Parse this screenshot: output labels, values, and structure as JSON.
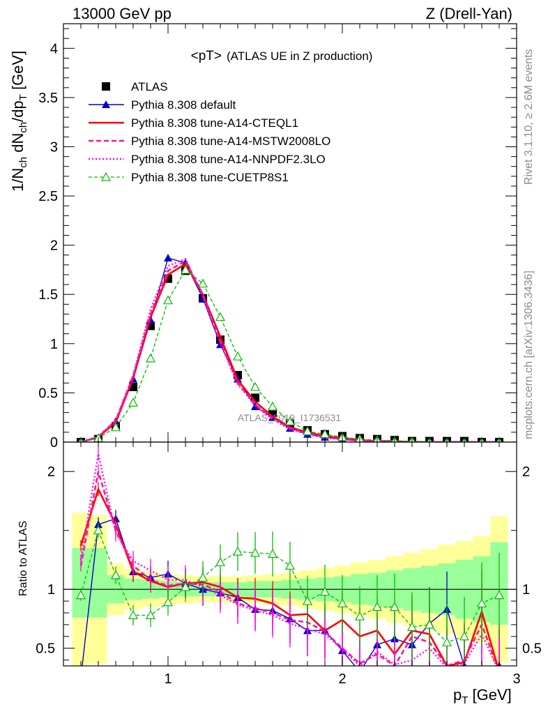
{
  "header": {
    "energy": "13000 GeV pp",
    "process": "Z (Drell-Yan)"
  },
  "side_text": {
    "rivet": "Rivet 3.1.10, ≥ 2.6M events",
    "source": "mcplots.cern.ch [arXiv:1306.3436]"
  },
  "plot_title_main": "<pT>",
  "plot_title_sub": "(ATLAS UE in Z production)",
  "watermark": "ATLAS_2019_I1736531",
  "colors": {
    "atlas": "#000000",
    "default": "#0000cc",
    "cteql1": "#ff0000",
    "mstw": "#ff1493",
    "nnpdf": "#ff00ff",
    "cuetp8s1": "#00bb00",
    "band_yellow": "#ffff99",
    "band_green": "#99ff99"
  },
  "chart_data": [
    {
      "type": "line",
      "panel": "main",
      "ylabel": "1/N_ch dN_ch/dp_T [GeV]",
      "xlim": [
        0.4,
        3.0
      ],
      "ylim": [
        0,
        4.25
      ],
      "yticks": [
        "0",
        "0.5",
        "1",
        "1.5",
        "2",
        "2.5",
        "3",
        "3.5",
        "4"
      ],
      "legend_position": "top-left",
      "x": [
        0.5,
        0.6,
        0.7,
        0.8,
        0.9,
        1.0,
        1.1,
        1.2,
        1.3,
        1.4,
        1.5,
        1.6,
        1.7,
        1.8,
        1.9,
        2.0,
        2.1,
        2.2,
        2.3,
        2.4,
        2.5,
        2.6,
        2.7,
        2.8,
        2.9
      ],
      "series": [
        {
          "name": "ATLAS",
          "key": "atlas",
          "values": [
            0.0,
            0.03,
            0.16,
            0.56,
            1.18,
            1.66,
            1.74,
            1.46,
            1.04,
            0.68,
            0.45,
            0.3,
            0.19,
            0.12,
            0.08,
            0.06,
            0.04,
            0.03,
            0.02,
            0.01,
            0.01,
            0.01,
            0.01,
            0.0,
            0.0
          ]
        },
        {
          "name": "Pythia 8.308 default",
          "key": "default",
          "values": [
            0.0,
            0.04,
            0.21,
            0.64,
            1.24,
            1.87,
            1.82,
            1.46,
            0.99,
            0.64,
            0.36,
            0.25,
            0.14,
            0.08,
            0.05,
            0.03,
            0.01,
            0.01,
            0.0,
            0.0,
            0.0,
            0.0,
            0.0,
            0.0,
            0.0
          ]
        },
        {
          "name": "Pythia 8.308 tune-A14-CTEQL1",
          "key": "cteql1",
          "values": [
            0.0,
            0.05,
            0.2,
            0.65,
            1.27,
            1.7,
            1.81,
            1.5,
            1.07,
            0.63,
            0.41,
            0.26,
            0.15,
            0.1,
            0.06,
            0.04,
            0.02,
            0.01,
            0.01,
            0.0,
            0.0,
            0.0,
            0.0,
            0.0,
            0.0
          ]
        },
        {
          "name": "Pythia 8.308 tune-A14-MSTW2008LO",
          "key": "mstw",
          "values": [
            0.0,
            0.05,
            0.22,
            0.67,
            1.3,
            1.74,
            1.84,
            1.5,
            1.02,
            0.6,
            0.38,
            0.24,
            0.14,
            0.09,
            0.05,
            0.03,
            0.01,
            0.01,
            0.0,
            0.0,
            0.0,
            0.0,
            0.0,
            0.0,
            0.0
          ]
        },
        {
          "name": "Pythia 8.308 tune-A14-NNPDF2.3LO",
          "key": "nnpdf",
          "values": [
            0.0,
            0.06,
            0.22,
            0.68,
            1.35,
            1.79,
            1.86,
            1.48,
            1.0,
            0.59,
            0.37,
            0.23,
            0.13,
            0.08,
            0.04,
            0.03,
            0.01,
            0.01,
            0.0,
            0.0,
            0.0,
            0.0,
            0.0,
            0.0,
            0.0
          ]
        },
        {
          "name": "Pythia 8.308 tune-CUETP8S1",
          "key": "cuetp8s1",
          "values": [
            0.0,
            0.04,
            0.15,
            0.4,
            0.85,
            1.44,
            1.75,
            1.61,
            1.27,
            0.87,
            0.56,
            0.36,
            0.21,
            0.11,
            0.08,
            0.05,
            0.03,
            0.02,
            0.01,
            0.01,
            0.0,
            0.0,
            0.0,
            0.0,
            0.0
          ]
        }
      ]
    },
    {
      "type": "line",
      "panel": "ratio",
      "xlabel": "p_T [GeV]",
      "ylabel": "Ratio to ATLAS",
      "xlim": [
        0.4,
        3.0
      ],
      "ylim": [
        0.35,
        2.25
      ],
      "xticks": [
        "1",
        "2",
        "3"
      ],
      "yticks": [
        "0.5",
        "1",
        "2"
      ],
      "x": [
        0.5,
        0.6,
        0.7,
        0.8,
        0.9,
        1.0,
        1.1,
        1.2,
        1.3,
        1.4,
        1.5,
        1.6,
        1.7,
        1.8,
        1.9,
        2.0,
        2.1,
        2.2,
        2.3,
        2.4,
        2.5,
        2.6,
        2.7,
        2.8,
        2.9
      ],
      "band_yellow": {
        "low": [
          0.35,
          0.37,
          0.78,
          0.83,
          0.85,
          0.87,
          0.88,
          0.89,
          0.89,
          0.89,
          0.88,
          0.87,
          0.86,
          0.84,
          0.82,
          0.8,
          0.77,
          0.75,
          0.72,
          0.69,
          0.66,
          0.62,
          0.59,
          0.55,
          0.38
        ],
        "high": [
          1.65,
          1.63,
          1.22,
          1.17,
          1.15,
          1.13,
          1.12,
          1.11,
          1.11,
          1.11,
          1.12,
          1.13,
          1.14,
          1.16,
          1.18,
          1.2,
          1.23,
          1.25,
          1.28,
          1.31,
          1.34,
          1.38,
          1.41,
          1.45,
          1.62
        ]
      },
      "band_green": {
        "low": [
          0.76,
          0.76,
          0.88,
          0.91,
          0.92,
          0.93,
          0.94,
          0.94,
          0.94,
          0.94,
          0.93,
          0.93,
          0.92,
          0.91,
          0.9,
          0.89,
          0.87,
          0.86,
          0.84,
          0.82,
          0.8,
          0.78,
          0.75,
          0.72,
          0.7
        ],
        "high": [
          1.35,
          1.35,
          1.12,
          1.09,
          1.08,
          1.07,
          1.06,
          1.06,
          1.06,
          1.06,
          1.07,
          1.07,
          1.08,
          1.09,
          1.1,
          1.11,
          1.13,
          1.14,
          1.16,
          1.18,
          1.2,
          1.22,
          1.25,
          1.28,
          1.4
        ]
      },
      "series": [
        {
          "name": "Pythia 8.308 default",
          "key": "default",
          "values": [
            0.25,
            1.55,
            1.6,
            1.15,
            1.1,
            1.13,
            1.05,
            1.0,
            0.97,
            0.93,
            0.83,
            0.82,
            0.75,
            0.65,
            0.65,
            0.48,
            0.3,
            0.53,
            0.58,
            0.53,
            0.71,
            0.83,
            0.35,
            0.3,
            0.35
          ]
        },
        {
          "name": "Pythia 8.308 tune-A14-CTEQL1",
          "key": "cteql1",
          "values": [
            1.37,
            1.85,
            1.55,
            1.15,
            1.07,
            1.02,
            1.05,
            1.06,
            1.02,
            0.93,
            0.92,
            0.88,
            0.78,
            0.79,
            0.65,
            0.74,
            0.6,
            0.65,
            0.45,
            0.65,
            0.62,
            0.35,
            0.38,
            0.81,
            0.3
          ]
        },
        {
          "name": "Pythia 8.308 tune-A14-MSTW2008LO",
          "key": "mstw",
          "values": [
            1.2,
            2.0,
            1.5,
            1.2,
            1.08,
            1.03,
            1.05,
            1.04,
            0.98,
            0.88,
            0.84,
            0.8,
            0.74,
            0.72,
            0.64,
            0.5,
            0.37,
            0.45,
            0.35,
            0.6,
            0.55,
            0.35,
            0.4,
            0.7,
            0.3
          ]
        },
        {
          "name": "Pythia 8.308 tune-A14-NNPDF2.3LO",
          "key": "nnpdf",
          "values": [
            1.25,
            2.15,
            1.48,
            1.24,
            1.16,
            1.08,
            1.08,
            1.02,
            0.95,
            0.87,
            0.82,
            0.78,
            0.71,
            0.66,
            0.62,
            0.49,
            0.35,
            0.47,
            0.36,
            0.4,
            0.5,
            0.33,
            0.37,
            0.62,
            0.3
          ]
        },
        {
          "name": "Pythia 8.308 tune-CUETP8S1",
          "key": "cuetp8s1",
          "values": [
            0.95,
            1.5,
            1.12,
            0.78,
            0.78,
            0.89,
            1.02,
            1.1,
            1.23,
            1.32,
            1.31,
            1.3,
            1.2,
            0.9,
            0.98,
            0.88,
            0.77,
            0.85,
            0.85,
            0.68,
            0.7,
            0.55,
            0.6,
            0.88,
            0.95
          ]
        }
      ]
    }
  ]
}
